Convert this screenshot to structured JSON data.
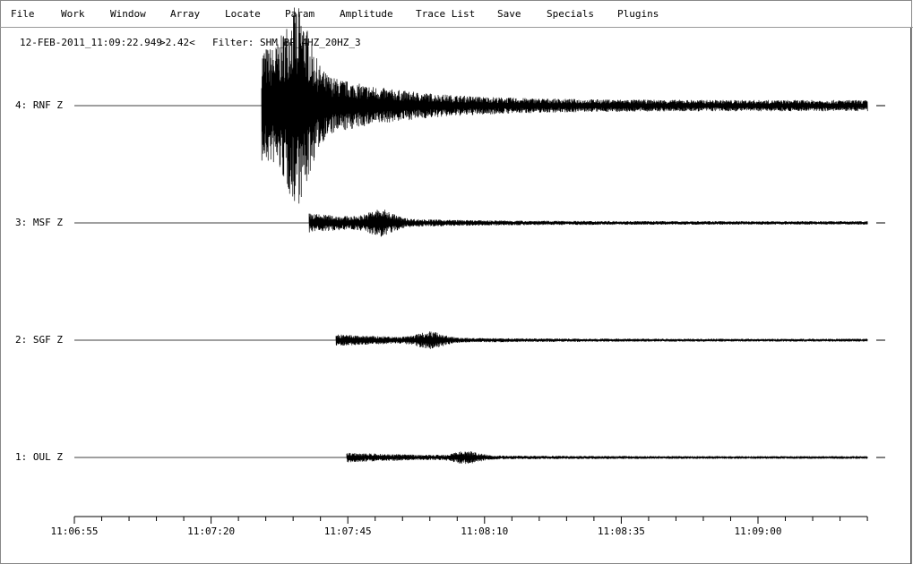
{
  "menu": [
    "File",
    "Work",
    "Window",
    "Array",
    "Locate",
    "Param",
    "Amplitude",
    "Trace List",
    "Save",
    "Specials",
    "Plugins"
  ],
  "header": {
    "time": "12-FEB-2011_11:09:22.949",
    "amplitude": ">2.42<",
    "filter": "Filter: SHM_BP_4HZ_20HZ_3"
  },
  "traces": [
    {
      "label": "4: RNF Z"
    },
    {
      "label": "3: MSF Z"
    },
    {
      "label": "2: SGF Z"
    },
    {
      "label": "1: OUL Z"
    }
  ],
  "time_axis": {
    "ticks": [
      "11:06:55",
      "11:07:20",
      "11:07:45",
      "11:08:10",
      "11:08:35",
      "11:09:00"
    ]
  }
}
